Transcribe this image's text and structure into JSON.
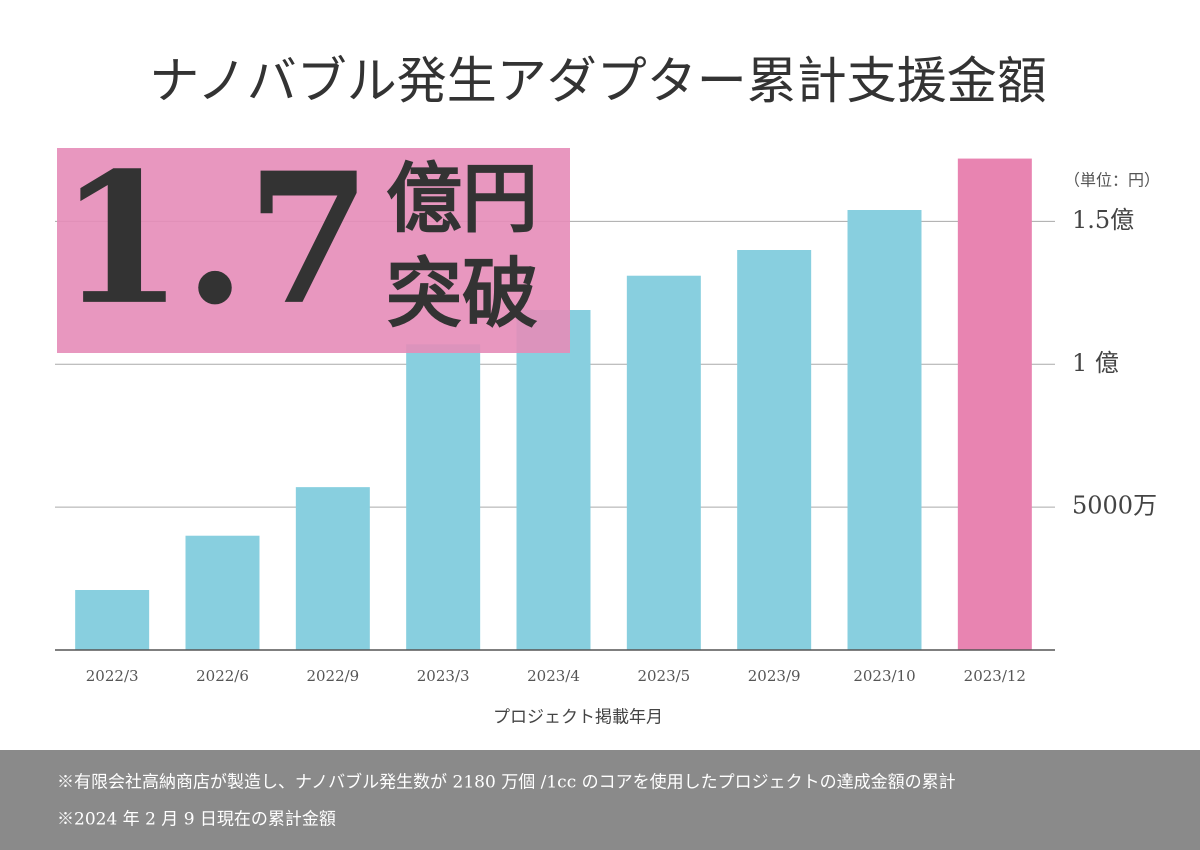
{
  "chart_data": {
    "type": "bar",
    "title": "ナノバブル発生アダプター累計支援金額",
    "badge": {
      "number": "1.7",
      "unit": "億円",
      "text": "突破"
    },
    "unit_note": "（単位：円）",
    "x_label": "プロジェクト掲載年月",
    "categories": [
      "2022/3",
      "2022/6",
      "2022/9",
      "2023/3",
      "2023/4",
      "2023/5",
      "2023/9",
      "2023/10",
      "2023/12"
    ],
    "values": [
      21000000,
      40000000,
      57000000,
      107000000,
      119000000,
      131000000,
      140000000,
      154000000,
      172000000
    ],
    "colors": [
      "#88cfdf",
      "#88cfdf",
      "#88cfdf",
      "#88cfdf",
      "#88cfdf",
      "#88cfdf",
      "#88cfdf",
      "#88cfdf",
      "#e884b1"
    ],
    "ylim": [
      0,
      175000000
    ],
    "yticks": [
      {
        "value": 50000000,
        "label": "5000万"
      },
      {
        "value": 100000000,
        "label": "1 億"
      },
      {
        "value": 150000000,
        "label": "1.5億"
      }
    ],
    "grid": true
  },
  "footnotes": [
    "※有限会社高納商店が製造し、ナノバブル発生数が 2180 万個 /1cc のコアを使用したプロジェクトの達成金額の累計",
    "※2024 年 2 月 9 日現在の累計金額"
  ]
}
